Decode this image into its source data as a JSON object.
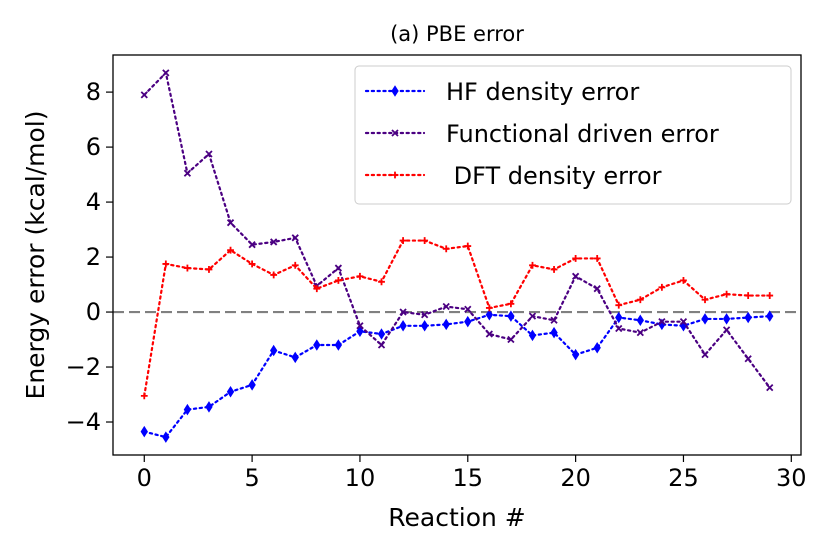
{
  "chart_data": {
    "type": "line",
    "title": "(a) PBE error",
    "xlabel": "Reaction #",
    "ylabel": "Energy error (kcal/mol)",
    "xlim": [
      -1.45,
      30.45
    ],
    "ylim": [
      -5.2,
      9.35
    ],
    "xticks": [
      0,
      5,
      10,
      15,
      20,
      25,
      30
    ],
    "yticks": [
      -4,
      -2,
      0,
      2,
      4,
      6,
      8
    ],
    "legend_position": "upper right",
    "reference_line": {
      "y": 0,
      "color": "#808080",
      "style": "dashed"
    },
    "x": [
      0,
      1,
      2,
      3,
      4,
      5,
      6,
      7,
      8,
      9,
      10,
      11,
      12,
      13,
      14,
      15,
      16,
      17,
      18,
      19,
      20,
      21,
      22,
      23,
      24,
      25,
      26,
      27,
      28,
      29
    ],
    "series": [
      {
        "name": "HF density error",
        "color": "#0000ff",
        "marker": "thin-diamond",
        "values": [
          -4.35,
          -4.55,
          -3.55,
          -3.45,
          -2.9,
          -2.65,
          -1.4,
          -1.65,
          -1.2,
          -1.2,
          -0.7,
          -0.8,
          -0.5,
          -0.5,
          -0.45,
          -0.35,
          -0.1,
          -0.15,
          -0.85,
          -0.75,
          -1.55,
          -1.3,
          -0.2,
          -0.3,
          -0.45,
          -0.5,
          -0.25,
          -0.25,
          -0.2,
          -0.15
        ]
      },
      {
        "name": "Functional driven error",
        "color": "#4b0082",
        "marker": "x",
        "values": [
          7.9,
          8.7,
          5.05,
          5.75,
          3.25,
          2.45,
          2.55,
          2.7,
          0.95,
          1.6,
          -0.5,
          -1.2,
          0.0,
          -0.1,
          0.2,
          0.1,
          -0.8,
          -1.0,
          -0.15,
          -0.3,
          1.3,
          0.85,
          -0.6,
          -0.75,
          -0.35,
          -0.35,
          -1.55,
          -0.65,
          -1.7,
          -2.75
        ]
      },
      {
        "name": " DFT density error",
        "color": "#ff0000",
        "marker": "plus",
        "values": [
          -3.05,
          1.75,
          1.6,
          1.55,
          2.25,
          1.75,
          1.35,
          1.7,
          0.85,
          1.15,
          1.3,
          1.1,
          2.6,
          2.6,
          2.3,
          2.4,
          0.15,
          0.3,
          1.7,
          1.55,
          1.95,
          1.95,
          0.25,
          0.45,
          0.9,
          1.15,
          0.45,
          0.65,
          0.6,
          0.6
        ]
      }
    ]
  }
}
